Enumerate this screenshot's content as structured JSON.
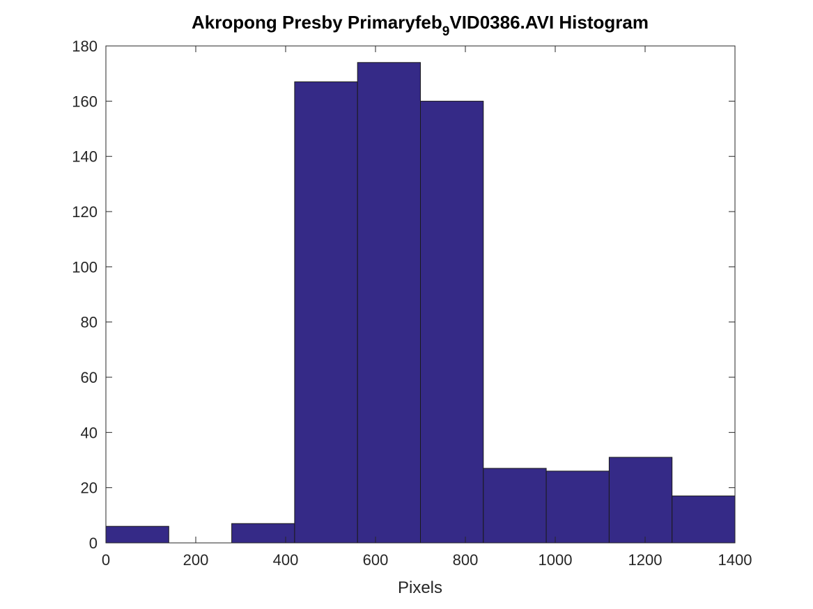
{
  "chart_data": {
    "type": "bar",
    "title_main": "Akropong Presby Primaryfeb",
    "title_sub": "9",
    "title_rest": "VID0386.AVI Histogram",
    "xlabel": "Pixels",
    "ylabel": "",
    "xlim": [
      0,
      1400
    ],
    "ylim": [
      0,
      180
    ],
    "xticks": [
      0,
      200,
      400,
      600,
      800,
      1000,
      1200,
      1400
    ],
    "yticks": [
      0,
      20,
      40,
      60,
      80,
      100,
      120,
      140,
      160,
      180
    ],
    "bin_edges": [
      0,
      140,
      280,
      420,
      560,
      700,
      840,
      980,
      1120,
      1260,
      1400
    ],
    "values": [
      6,
      0,
      7,
      167,
      174,
      160,
      27,
      26,
      31,
      17
    ],
    "bar_color": "#352A87",
    "grid": false,
    "box": true
  }
}
